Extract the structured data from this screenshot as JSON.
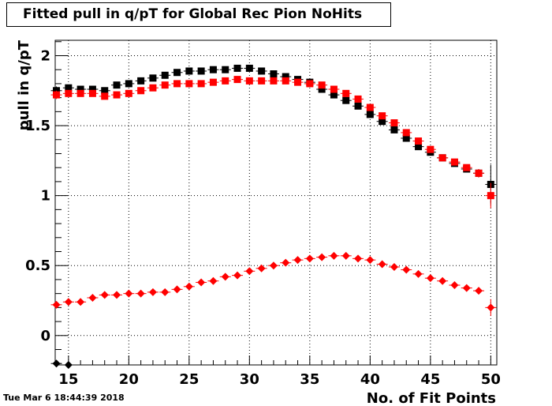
{
  "title": "Fitted pull in q/pT for Global Rec Pion NoHits",
  "timestamp": "Tue Mar  6 18:44:39 2018",
  "chart_data": {
    "type": "scatter",
    "title": "Fitted pull in q/pT for Global Rec Pion NoHits",
    "xlabel": "No. of Fit Points",
    "ylabel": "pull in q/pT",
    "xlim": [
      13.9,
      50.5
    ],
    "ylim": [
      -0.21,
      2.11
    ],
    "x_ticks": [
      15,
      20,
      25,
      30,
      35,
      40,
      45,
      50
    ],
    "y_ticks": [
      0,
      0.5,
      1,
      1.5,
      2
    ],
    "x_tick_labels": [
      "15",
      "20",
      "25",
      "30",
      "35",
      "40",
      "45",
      "50"
    ],
    "y_tick_labels": [
      "0",
      "0.5",
      "1",
      "1.5",
      "2"
    ],
    "grid": true,
    "series": [
      {
        "marker": "square",
        "color": "#000000",
        "x": [
          14,
          15,
          16,
          17,
          18,
          19,
          20,
          21,
          22,
          23,
          24,
          25,
          26,
          27,
          28,
          29,
          30,
          31,
          32,
          33,
          34,
          35,
          36,
          37,
          38,
          39,
          40,
          41,
          42,
          43,
          44,
          45,
          46,
          47,
          48,
          49,
          50
        ],
        "y": [
          1.75,
          1.77,
          1.76,
          1.76,
          1.75,
          1.79,
          1.8,
          1.82,
          1.84,
          1.86,
          1.88,
          1.89,
          1.89,
          1.9,
          1.9,
          1.91,
          1.91,
          1.89,
          1.87,
          1.85,
          1.83,
          1.81,
          1.76,
          1.72,
          1.68,
          1.64,
          1.58,
          1.53,
          1.47,
          1.41,
          1.35,
          1.31,
          1.27,
          1.23,
          1.19,
          1.16,
          1.08
        ],
        "err": [
          0.03,
          0.02,
          0.02,
          0.02,
          0.02,
          0.02,
          0.02,
          0.02,
          0.02,
          0.02,
          0.02,
          0.02,
          0.02,
          0.02,
          0.02,
          0.02,
          0.02,
          0.02,
          0.02,
          0.02,
          0.02,
          0.02,
          0.02,
          0.02,
          0.02,
          0.02,
          0.02,
          0.02,
          0.02,
          0.02,
          0.02,
          0.02,
          0.02,
          0.02,
          0.02,
          0.03,
          0.14
        ]
      },
      {
        "marker": "square",
        "color": "#ff0000",
        "x": [
          14,
          15,
          16,
          17,
          18,
          19,
          20,
          21,
          22,
          23,
          24,
          25,
          26,
          27,
          28,
          29,
          30,
          31,
          32,
          33,
          34,
          35,
          36,
          37,
          38,
          39,
          40,
          41,
          42,
          43,
          44,
          45,
          46,
          47,
          48,
          49,
          50
        ],
        "y": [
          1.72,
          1.73,
          1.73,
          1.73,
          1.71,
          1.72,
          1.73,
          1.75,
          1.77,
          1.79,
          1.8,
          1.8,
          1.8,
          1.81,
          1.82,
          1.83,
          1.82,
          1.82,
          1.82,
          1.82,
          1.81,
          1.8,
          1.79,
          1.76,
          1.73,
          1.69,
          1.63,
          1.57,
          1.52,
          1.45,
          1.39,
          1.33,
          1.27,
          1.24,
          1.2,
          1.16,
          1.0
        ],
        "err": [
          0.03,
          0.02,
          0.02,
          0.02,
          0.02,
          0.02,
          0.02,
          0.02,
          0.02,
          0.02,
          0.02,
          0.02,
          0.02,
          0.02,
          0.02,
          0.02,
          0.02,
          0.02,
          0.02,
          0.02,
          0.02,
          0.02,
          0.02,
          0.02,
          0.02,
          0.02,
          0.02,
          0.02,
          0.02,
          0.02,
          0.02,
          0.02,
          0.02,
          0.02,
          0.02,
          0.03,
          0.09
        ]
      },
      {
        "marker": "diamond",
        "color": "#000000",
        "x": [
          14,
          15
        ],
        "y": [
          -0.2,
          -0.21
        ],
        "err": [
          0,
          0
        ]
      },
      {
        "marker": "diamond",
        "color": "#ff0000",
        "x": [
          14,
          15,
          16,
          17,
          18,
          19,
          20,
          21,
          22,
          23,
          24,
          25,
          26,
          27,
          28,
          29,
          30,
          31,
          32,
          33,
          34,
          35,
          36,
          37,
          38,
          39,
          40,
          41,
          42,
          43,
          44,
          45,
          46,
          47,
          48,
          49,
          50
        ],
        "y": [
          0.22,
          0.24,
          0.24,
          0.27,
          0.29,
          0.29,
          0.3,
          0.3,
          0.31,
          0.31,
          0.33,
          0.35,
          0.38,
          0.39,
          0.42,
          0.43,
          0.46,
          0.48,
          0.5,
          0.52,
          0.54,
          0.55,
          0.56,
          0.57,
          0.57,
          0.55,
          0.54,
          0.51,
          0.49,
          0.47,
          0.44,
          0.41,
          0.39,
          0.36,
          0.34,
          0.32,
          0.2
        ],
        "err": [
          0.01,
          0.01,
          0.01,
          0.01,
          0.01,
          0.01,
          0.01,
          0.01,
          0.01,
          0.01,
          0.01,
          0.01,
          0.01,
          0.01,
          0.01,
          0.01,
          0.01,
          0.01,
          0.01,
          0.01,
          0.01,
          0.01,
          0.01,
          0.01,
          0.01,
          0.01,
          0.01,
          0.01,
          0.01,
          0.01,
          0.01,
          0.01,
          0.01,
          0.01,
          0.01,
          0.01,
          0.06
        ]
      }
    ]
  }
}
